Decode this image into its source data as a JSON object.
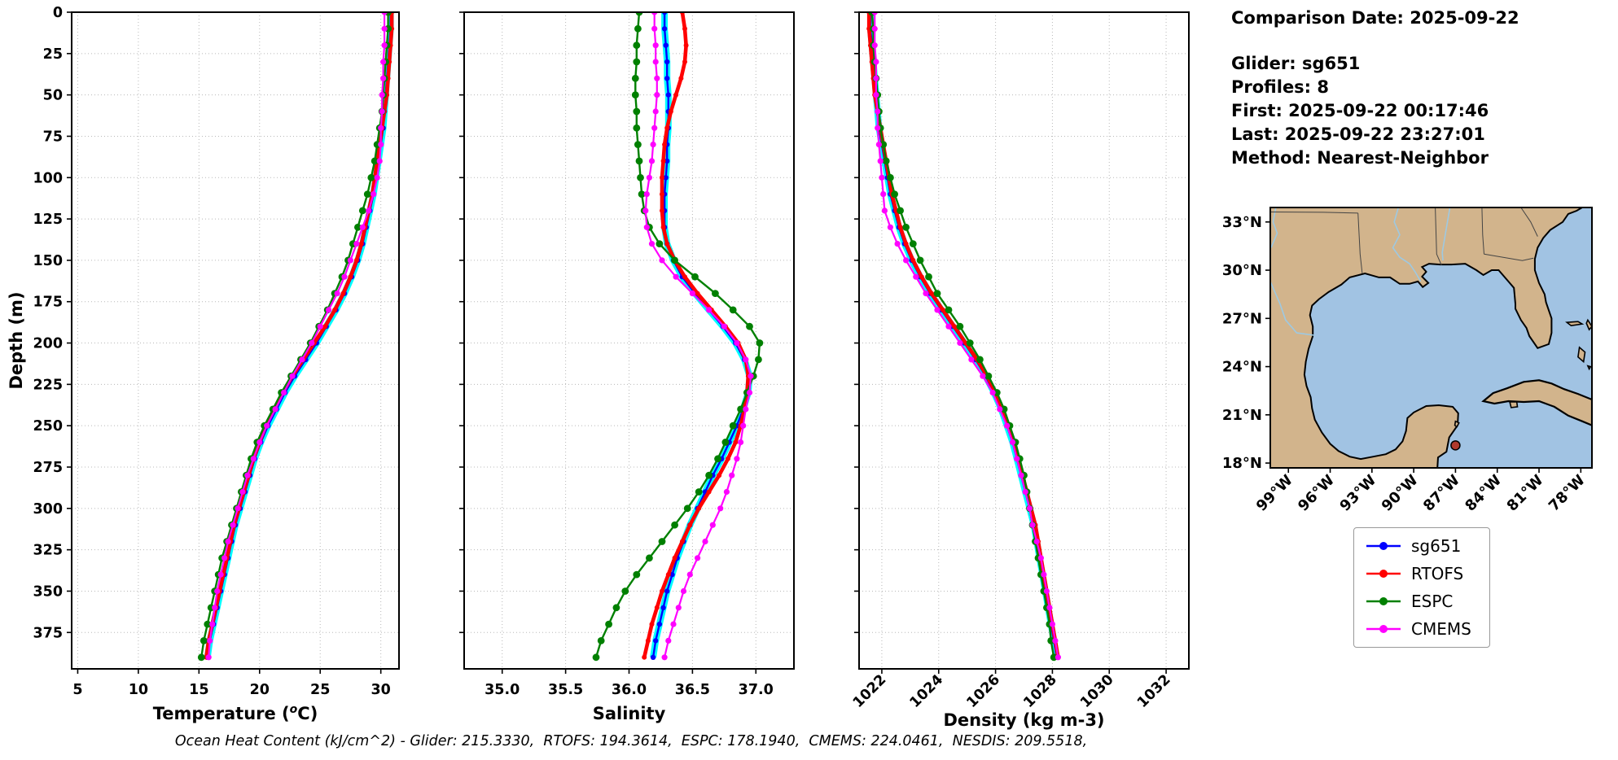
{
  "info": {
    "comparison_date": "Comparison Date: 2025-09-22",
    "glider": "Glider: sg651",
    "profiles": "Profiles: 8",
    "first": "First: 2025-09-22 00:17:46",
    "last": "Last: 2025-09-22 23:27:01",
    "method": "Method: Nearest-Neighbor"
  },
  "footer": "Ocean Heat Content (kJ/cm^2) - Glider: 215.3330,  RTOFS: 194.3614,  ESPC: 178.1940,  CMEMS: 224.0461,  NESDIS: 209.5518,",
  "legend": [
    {
      "label": "sg651",
      "color": "#0000ff"
    },
    {
      "label": "RTOFS",
      "color": "#ff0000"
    },
    {
      "label": "ESPC",
      "color": "#008000"
    },
    {
      "label": "CMEMS",
      "color": "#ff00ff"
    }
  ],
  "colors": {
    "glider_halo": "#00ffff",
    "grid": "#b8b8b8",
    "land": "#d2b48c",
    "water": "#a1c3e3",
    "river": "#9ec9e2",
    "state_border": "#444444",
    "marker_dot": "#b03a2e"
  },
  "chart_data": {
    "type": "line",
    "orientation": "vertical-profile",
    "depth_label": "Depth (m)",
    "depth_lim": [
      0,
      397
    ],
    "depth_ticks": [
      0,
      25,
      50,
      75,
      100,
      125,
      150,
      175,
      200,
      225,
      250,
      275,
      300,
      325,
      350,
      375
    ],
    "depths": [
      0,
      10,
      20,
      30,
      40,
      50,
      60,
      70,
      80,
      90,
      100,
      110,
      120,
      130,
      140,
      150,
      160,
      170,
      180,
      190,
      200,
      210,
      220,
      230,
      240,
      250,
      260,
      270,
      280,
      290,
      300,
      310,
      320,
      330,
      340,
      350,
      360,
      370,
      380,
      390
    ],
    "panels": [
      {
        "id": "temperature",
        "xlabel": "Temperature (°C)",
        "xlabel_parts": [
          "Temperature (",
          "o",
          "C)"
        ],
        "xlim": [
          4.5,
          31.5
        ],
        "xticks": [
          5,
          10,
          15,
          20,
          25,
          30
        ],
        "xtick_labels": [
          "5",
          "10",
          "15",
          "20",
          "25",
          "30"
        ],
        "rotate_xtick_labels": false,
        "show_depth_tick_labels": true,
        "series": [
          {
            "name": "sg651",
            "values": [
              30.8,
              30.8,
              30.7,
              30.6,
              30.5,
              30.4,
              30.3,
              30.2,
              30.0,
              29.8,
              29.6,
              29.4,
              29.1,
              28.8,
              28.5,
              28.1,
              27.6,
              27.0,
              26.3,
              25.5,
              24.7,
              23.8,
              22.9,
              22.1,
              21.4,
              20.7,
              20.1,
              19.6,
              19.2,
              18.8,
              18.4,
              18.0,
              17.7,
              17.4,
              17.1,
              16.8,
              16.5,
              16.2,
              15.9,
              15.7
            ]
          },
          {
            "name": "RTOFS",
            "values": [
              30.9,
              30.9,
              30.8,
              30.7,
              30.6,
              30.5,
              30.3,
              30.1,
              29.9,
              29.7,
              29.5,
              29.3,
              29.0,
              28.7,
              28.4,
              28.0,
              27.5,
              26.9,
              26.2,
              25.4,
              24.5,
              23.6,
              22.7,
              21.9,
              21.2,
              20.5,
              20.0,
              19.5,
              19.1,
              18.7,
              18.3,
              17.9,
              17.6,
              17.3,
              17.0,
              16.7,
              16.4,
              16.1,
              15.8,
              15.6
            ]
          },
          {
            "name": "ESPC",
            "values": [
              30.6,
              30.6,
              30.5,
              30.4,
              30.3,
              30.2,
              30.1,
              29.9,
              29.7,
              29.5,
              29.2,
              28.9,
              28.5,
              28.1,
              27.7,
              27.3,
              26.8,
              26.2,
              25.6,
              24.9,
              24.2,
              23.4,
              22.6,
              21.8,
              21.1,
              20.4,
              19.8,
              19.3,
              18.9,
              18.5,
              18.1,
              17.7,
              17.3,
              16.9,
              16.6,
              16.3,
              16.0,
              15.7,
              15.4,
              15.2
            ]
          },
          {
            "name": "CMEMS",
            "values": [
              30.3,
              30.3,
              30.3,
              30.2,
              30.2,
              30.1,
              30.1,
              30.0,
              30.0,
              29.9,
              29.7,
              29.4,
              29.0,
              28.5,
              28.0,
              27.5,
              27.0,
              26.4,
              25.7,
              25.0,
              24.3,
              23.5,
              22.7,
              22.0,
              21.3,
              20.6,
              20.0,
              19.5,
              19.0,
              18.6,
              18.2,
              17.8,
              17.4,
              17.1,
              16.8,
              16.5,
              16.3,
              16.1,
              15.9,
              15.8
            ]
          }
        ]
      },
      {
        "id": "salinity",
        "xlabel": "Salinity",
        "xlim": [
          34.7,
          37.3
        ],
        "xticks": [
          35.0,
          35.5,
          36.0,
          36.5,
          37.0
        ],
        "xtick_labels": [
          "35.0",
          "35.5",
          "36.0",
          "36.5",
          "37.0"
        ],
        "rotate_xtick_labels": false,
        "show_depth_tick_labels": false,
        "series": [
          {
            "name": "sg651",
            "values": [
              36.28,
              36.28,
              36.29,
              36.3,
              36.3,
              36.31,
              36.31,
              36.31,
              36.3,
              36.3,
              36.29,
              36.28,
              36.28,
              36.28,
              36.3,
              36.35,
              36.42,
              36.52,
              36.63,
              36.74,
              36.84,
              36.91,
              36.95,
              36.94,
              36.9,
              36.85,
              36.79,
              36.73,
              36.66,
              36.6,
              36.54,
              36.48,
              36.43,
              36.38,
              36.34,
              36.3,
              36.27,
              36.24,
              36.21,
              36.19
            ]
          },
          {
            "name": "RTOFS",
            "values": [
              36.42,
              36.44,
              36.45,
              36.44,
              36.41,
              36.37,
              36.33,
              36.3,
              36.28,
              36.27,
              36.26,
              36.26,
              36.26,
              36.27,
              36.3,
              36.36,
              36.44,
              36.54,
              36.65,
              36.76,
              36.86,
              36.92,
              36.94,
              36.93,
              36.91,
              36.88,
              36.84,
              36.78,
              36.71,
              36.63,
              36.55,
              36.48,
              36.42,
              36.36,
              36.31,
              36.26,
              36.22,
              36.18,
              36.15,
              36.12
            ]
          },
          {
            "name": "ESPC",
            "values": [
              36.08,
              36.07,
              36.06,
              36.06,
              36.05,
              36.05,
              36.06,
              36.06,
              36.07,
              36.08,
              36.09,
              36.1,
              36.12,
              36.16,
              36.24,
              36.36,
              36.52,
              36.68,
              36.82,
              36.95,
              37.03,
              37.02,
              36.98,
              36.93,
              36.88,
              36.82,
              36.76,
              36.7,
              36.63,
              36.55,
              36.46,
              36.36,
              36.26,
              36.16,
              36.06,
              35.97,
              35.9,
              35.84,
              35.78,
              35.74
            ]
          },
          {
            "name": "CMEMS",
            "values": [
              36.2,
              36.2,
              36.21,
              36.21,
              36.22,
              36.22,
              36.21,
              36.2,
              36.19,
              36.18,
              36.16,
              36.14,
              36.13,
              36.14,
              36.18,
              36.26,
              36.37,
              36.5,
              36.63,
              36.75,
              36.85,
              36.92,
              36.96,
              36.95,
              36.92,
              36.9,
              36.88,
              36.85,
              36.81,
              36.77,
              36.72,
              36.66,
              36.6,
              36.54,
              36.48,
              36.43,
              36.39,
              36.35,
              36.31,
              36.28
            ]
          }
        ]
      },
      {
        "id": "density",
        "xlabel": "Density (kg m-3)",
        "xlim": [
          1021.2,
          1032.8
        ],
        "xticks": [
          1022,
          1024,
          1026,
          1028,
          1030,
          1032
        ],
        "xtick_labels": [
          "1022",
          "1024",
          "1026",
          "1028",
          "1030",
          "1032"
        ],
        "rotate_xtick_labels": true,
        "show_depth_tick_labels": false,
        "series": [
          {
            "name": "sg651",
            "values": [
              1021.6,
              1021.6,
              1021.65,
              1021.7,
              1021.75,
              1021.8,
              1021.85,
              1021.9,
              1022.0,
              1022.1,
              1022.2,
              1022.3,
              1022.45,
              1022.6,
              1022.8,
              1023.05,
              1023.35,
              1023.7,
              1024.1,
              1024.5,
              1024.9,
              1025.3,
              1025.65,
              1025.95,
              1026.2,
              1026.4,
              1026.6,
              1026.75,
              1026.9,
              1027.05,
              1027.2,
              1027.35,
              1027.45,
              1027.55,
              1027.65,
              1027.75,
              1027.85,
              1027.95,
              1028.05,
              1028.15
            ]
          },
          {
            "name": "RTOFS",
            "values": [
              1021.55,
              1021.55,
              1021.6,
              1021.65,
              1021.7,
              1021.75,
              1021.85,
              1021.95,
              1022.05,
              1022.15,
              1022.25,
              1022.35,
              1022.5,
              1022.65,
              1022.85,
              1023.1,
              1023.4,
              1023.75,
              1024.15,
              1024.55,
              1024.95,
              1025.35,
              1025.7,
              1026.0,
              1026.25,
              1026.45,
              1026.65,
              1026.8,
              1026.95,
              1027.1,
              1027.25,
              1027.4,
              1027.5,
              1027.6,
              1027.7,
              1027.8,
              1027.9,
              1028.0,
              1028.1,
              1028.2
            ]
          },
          {
            "name": "ESPC",
            "values": [
              1021.65,
              1021.7,
              1021.7,
              1021.75,
              1021.8,
              1021.85,
              1021.9,
              1021.95,
              1022.05,
              1022.15,
              1022.3,
              1022.45,
              1022.65,
              1022.85,
              1023.1,
              1023.35,
              1023.65,
              1023.95,
              1024.35,
              1024.75,
              1025.1,
              1025.45,
              1025.75,
              1026.05,
              1026.3,
              1026.5,
              1026.7,
              1026.85,
              1027.0,
              1027.1,
              1027.2,
              1027.3,
              1027.4,
              1027.5,
              1027.6,
              1027.7,
              1027.8,
              1027.9,
              1027.95,
              1028.05
            ]
          },
          {
            "name": "CMEMS",
            "values": [
              1021.75,
              1021.75,
              1021.75,
              1021.8,
              1021.8,
              1021.8,
              1021.85,
              1021.85,
              1021.9,
              1021.95,
              1022.0,
              1022.05,
              1022.1,
              1022.3,
              1022.55,
              1022.85,
              1023.2,
              1023.55,
              1023.95,
              1024.35,
              1024.75,
              1025.15,
              1025.55,
              1025.9,
              1026.15,
              1026.4,
              1026.6,
              1026.75,
              1026.9,
              1027.05,
              1027.2,
              1027.3,
              1027.45,
              1027.6,
              1027.7,
              1027.8,
              1027.9,
              1028.0,
              1028.1,
              1028.2
            ]
          }
        ]
      }
    ],
    "map": {
      "lon_lim": [
        -100.3,
        -77.2
      ],
      "lat_lim": [
        17.7,
        33.9
      ],
      "lat_ticks": [
        {
          "value": 33,
          "label": "33°N"
        },
        {
          "value": 30,
          "label": "30°N"
        },
        {
          "value": 27,
          "label": "27°N"
        },
        {
          "value": 24,
          "label": "24°N"
        },
        {
          "value": 21,
          "label": "21°N"
        },
        {
          "value": 18,
          "label": "18°N"
        }
      ],
      "lon_ticks": [
        {
          "value": -99,
          "label": "99°W"
        },
        {
          "value": -96,
          "label": "96°W"
        },
        {
          "value": -93,
          "label": "93°W"
        },
        {
          "value": -90,
          "label": "90°W"
        },
        {
          "value": -87,
          "label": "87°W"
        },
        {
          "value": -84,
          "label": "84°W"
        },
        {
          "value": -81,
          "label": "81°W"
        },
        {
          "value": -78,
          "label": "78°W"
        }
      ],
      "glider_marker": {
        "lon": -87.0,
        "lat": 19.1
      }
    }
  }
}
